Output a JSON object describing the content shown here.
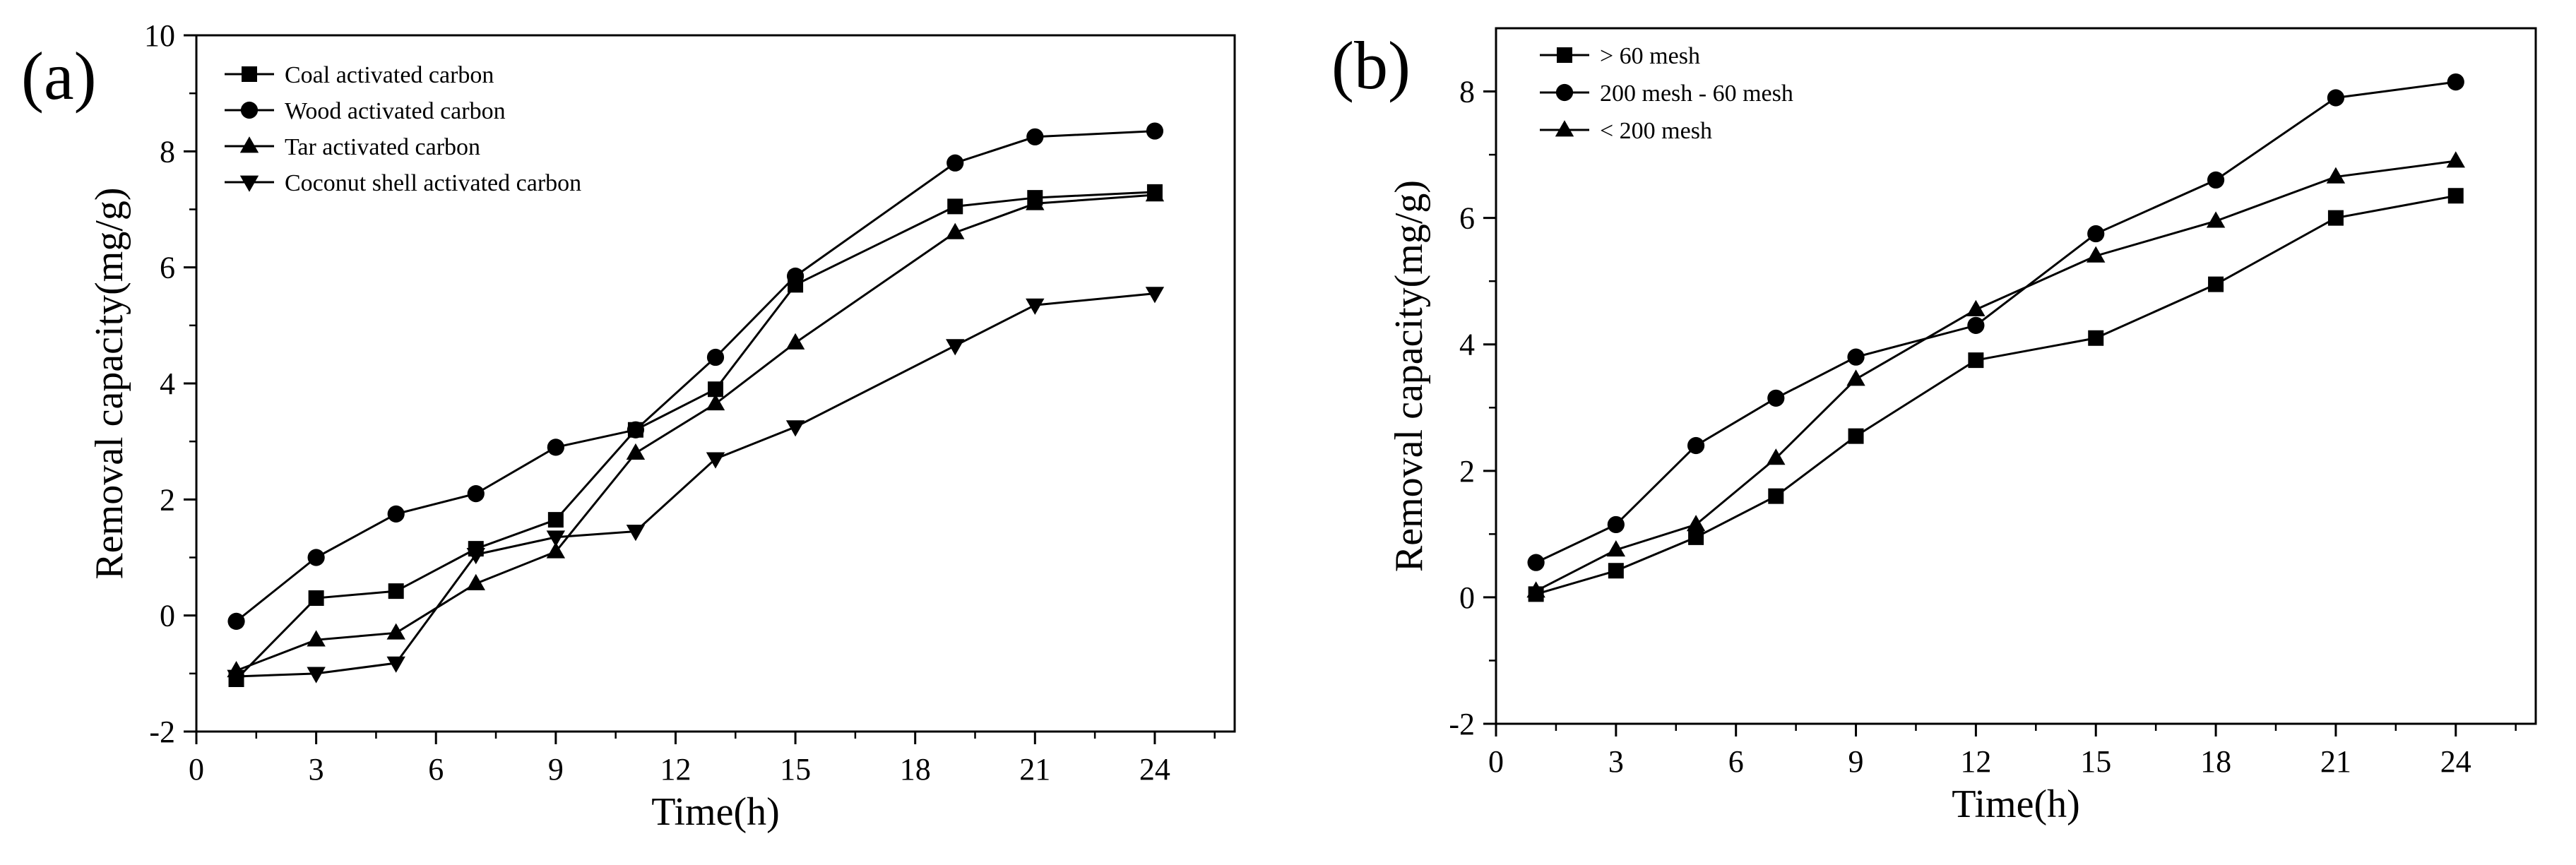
{
  "chart_data": [
    {
      "type": "line",
      "panel_label": "(a)",
      "xlabel": "Time(h)",
      "ylabel": "Removal capacity(mg/g)",
      "xlim": [
        0,
        26
      ],
      "ylim": [
        -2,
        10
      ],
      "xticks": [
        0,
        3,
        6,
        9,
        12,
        15,
        18,
        21,
        24
      ],
      "yticks": [
        -2,
        0,
        2,
        4,
        6,
        8,
        10
      ],
      "grid": false,
      "legend_position": "top-left",
      "series": [
        {
          "name": "Coal activated carbon",
          "marker": "square",
          "x": [
            1,
            3,
            5,
            7,
            9,
            11,
            13,
            15,
            19,
            21,
            24
          ],
          "y": [
            -1.1,
            0.3,
            0.42,
            1.15,
            1.65,
            3.2,
            3.9,
            5.7,
            7.05,
            7.2,
            7.3
          ]
        },
        {
          "name": "Wood activated carbon",
          "marker": "circle",
          "x": [
            1,
            3,
            5,
            7,
            9,
            11,
            13,
            15,
            19,
            21,
            24
          ],
          "y": [
            -0.1,
            1.0,
            1.75,
            2.1,
            2.9,
            3.2,
            4.45,
            5.85,
            7.8,
            8.25,
            8.35
          ]
        },
        {
          "name": "Tar activated carbon",
          "marker": "triangle-up",
          "x": [
            1,
            3,
            5,
            7,
            9,
            11,
            13,
            15,
            19,
            21,
            24
          ],
          "y": [
            -0.95,
            -0.42,
            -0.3,
            0.55,
            1.1,
            2.8,
            3.65,
            4.7,
            6.6,
            7.1,
            7.25
          ]
        },
        {
          "name": "Coconut shell activated carbon",
          "marker": "triangle-down",
          "x": [
            1,
            3,
            5,
            7,
            9,
            11,
            13,
            15,
            19,
            21,
            24
          ],
          "y": [
            -1.05,
            -1.0,
            -0.82,
            1.05,
            1.35,
            1.45,
            2.7,
            3.25,
            4.65,
            5.35,
            5.55
          ]
        }
      ]
    },
    {
      "type": "line",
      "panel_label": "(b)",
      "xlabel": "Time(h)",
      "ylabel": "Removal capacity(mg/g)",
      "xlim": [
        0,
        26
      ],
      "ylim": [
        -2,
        9
      ],
      "xticks": [
        0,
        3,
        6,
        9,
        12,
        15,
        18,
        21,
        24
      ],
      "yticks": [
        -2,
        0,
        2,
        4,
        6,
        8
      ],
      "grid": false,
      "legend_position": "top-left",
      "series": [
        {
          "name": "> 60 mesh",
          "marker": "square",
          "x": [
            1,
            3,
            5,
            7,
            9,
            12,
            15,
            18,
            21,
            24
          ],
          "y": [
            0.05,
            0.42,
            0.95,
            1.6,
            2.55,
            3.75,
            4.1,
            4.95,
            6.0,
            6.35
          ]
        },
        {
          "name": "200 mesh - 60 mesh",
          "marker": "circle",
          "x": [
            1,
            3,
            5,
            7,
            9,
            12,
            15,
            18,
            21,
            24
          ],
          "y": [
            0.55,
            1.15,
            2.4,
            3.15,
            3.8,
            4.3,
            5.75,
            6.6,
            7.9,
            8.15
          ]
        },
        {
          "name": "< 200 mesh",
          "marker": "triangle-up",
          "x": [
            1,
            3,
            5,
            7,
            9,
            12,
            15,
            18,
            21,
            24
          ],
          "y": [
            0.1,
            0.75,
            1.15,
            2.2,
            3.45,
            4.55,
            5.4,
            5.95,
            6.65,
            6.9
          ]
        }
      ]
    }
  ]
}
